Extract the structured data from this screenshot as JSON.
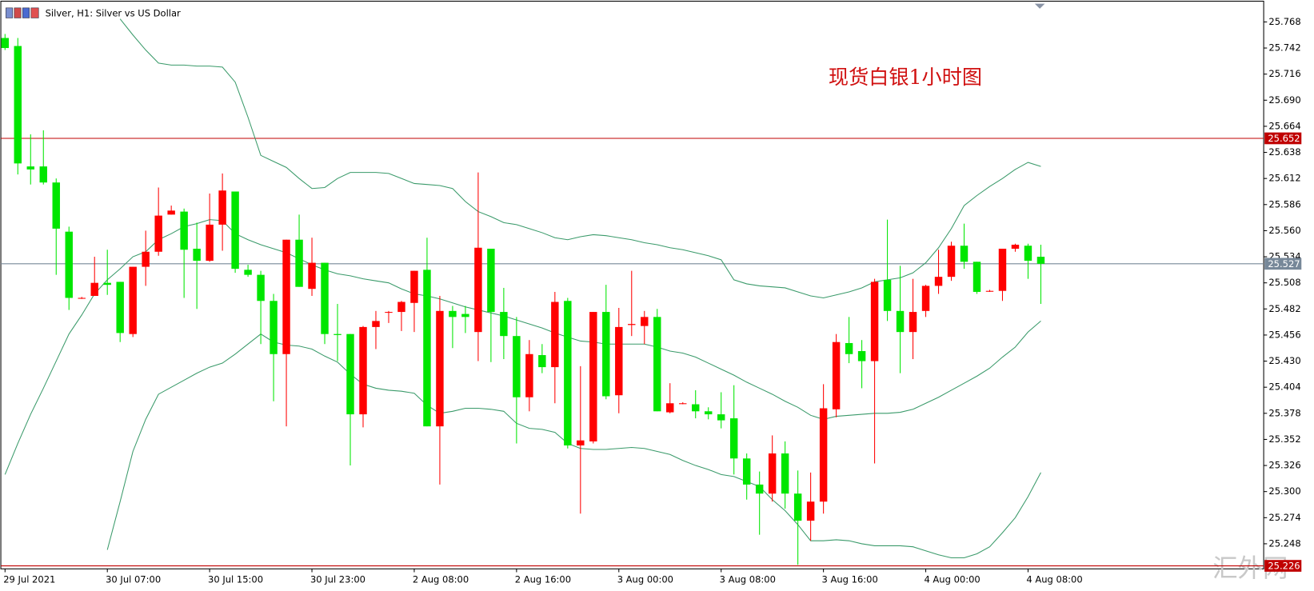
{
  "header": {
    "title": "Silver, H1:  Silver vs US Dollar"
  },
  "chart_data": {
    "type": "candlestick",
    "annotation": "现货白银1小时图",
    "watermark": "汇外网",
    "up_color": "#ff0000",
    "down_color": "#00e600",
    "categories": [
      "29 Jul 2021",
      null,
      null,
      null,
      null,
      null,
      null,
      null,
      "30 Jul 07:00",
      null,
      null,
      null,
      null,
      null,
      null,
      null,
      "30 Jul 15:00",
      null,
      null,
      null,
      null,
      null,
      null,
      null,
      "30 Jul 23:00",
      null,
      null,
      null,
      null,
      null,
      null,
      null,
      "2 Aug 08:00",
      null,
      null,
      null,
      null,
      null,
      null,
      null,
      "2 Aug 16:00",
      null,
      null,
      null,
      null,
      null,
      null,
      null,
      "3 Aug 00:00",
      null,
      null,
      null,
      null,
      null,
      null,
      null,
      "3 Aug 08:00",
      null,
      null,
      null,
      null,
      null,
      null,
      null,
      "3 Aug 16:00",
      null,
      null,
      null,
      null,
      null,
      null,
      null,
      "4 Aug 00:00",
      null,
      null,
      null,
      null,
      null,
      null,
      null,
      "4 Aug 08:00",
      null
    ],
    "open": [
      25.752,
      25.744,
      25.624,
      25.624,
      25.608,
      25.559,
      25.493,
      25.495,
      25.508,
      25.509,
      25.457,
      25.524,
      25.539,
      25.576,
      25.579,
      25.542,
      25.53,
      25.566,
      25.599,
      25.521,
      25.516,
      25.49,
      25.437,
      25.551,
      25.502,
      25.528,
      25.457,
      25.457,
      25.377,
      25.464,
      25.479,
      25.479,
      25.488,
      25.521,
      25.365,
      25.48,
      25.477,
      25.459,
      25.542,
      25.479,
      25.455,
      25.394,
      25.436,
      25.424,
      25.49,
      25.346,
      25.35,
      25.479,
      25.396,
      25.466,
      25.465,
      25.474,
      25.379,
      25.388,
      25.387,
      25.38,
      25.377,
      25.373,
      25.333,
      25.307,
      25.298,
      25.338,
      25.298,
      25.271,
      25.29,
      25.382,
      25.448,
      25.44,
      25.43,
      25.511,
      25.48,
      25.459,
      25.48,
      25.505,
      25.514,
      25.545,
      25.529,
      25.5,
      25.5,
      25.542,
      25.545,
      25.534
    ],
    "high": [
      25.756,
      25.752,
      25.656,
      25.66,
      25.612,
      25.564,
      25.494,
      25.534,
      25.541,
      25.509,
      25.524,
      25.56,
      25.603,
      25.585,
      25.582,
      25.568,
      25.597,
      25.617,
      25.599,
      25.526,
      25.52,
      25.497,
      25.551,
      25.576,
      25.553,
      25.528,
      25.487,
      25.457,
      25.465,
      25.48,
      25.48,
      25.49,
      25.52,
      25.553,
      25.495,
      25.485,
      25.485,
      25.618,
      25.542,
      25.503,
      25.474,
      25.451,
      25.447,
      25.499,
      25.493,
      25.425,
      25.479,
      25.506,
      25.483,
      25.52,
      25.48,
      25.482,
      25.408,
      25.389,
      25.401,
      25.384,
      25.399,
      25.406,
      25.338,
      25.32,
      25.356,
      25.35,
      25.321,
      25.319,
      25.407,
      25.457,
      25.474,
      25.451,
      25.512,
      25.571,
      25.525,
      25.512,
      25.506,
      25.541,
      25.549,
      25.567,
      25.529,
      25.501,
      25.542,
      25.547,
      25.547,
      25.546
    ],
    "low": [
      25.74,
      25.616,
      25.606,
      25.606,
      25.516,
      25.481,
      25.492,
      25.495,
      25.496,
      25.449,
      25.454,
      25.505,
      25.535,
      25.576,
      25.493,
      25.482,
      25.529,
      25.54,
      25.518,
      25.514,
      25.447,
      25.39,
      25.365,
      25.504,
      25.495,
      25.447,
      25.43,
      25.326,
      25.364,
      25.442,
      25.468,
      25.46,
      25.459,
      25.365,
      25.307,
      25.443,
      25.458,
      25.43,
      25.429,
      25.432,
      25.348,
      25.38,
      25.418,
      25.388,
      25.343,
      25.278,
      25.348,
      25.392,
      25.378,
      25.455,
      25.447,
      25.38,
      25.378,
      25.387,
      25.373,
      25.372,
      25.363,
      25.317,
      25.292,
      25.257,
      25.29,
      25.283,
      25.227,
      25.251,
      25.278,
      25.374,
      25.428,
      25.403,
      25.328,
      25.47,
      25.418,
      25.432,
      25.474,
      25.497,
      25.51,
      25.522,
      25.497,
      25.499,
      25.49,
      25.539,
      25.512,
      25.487
    ],
    "close": [
      25.742,
      25.627,
      25.621,
      25.608,
      25.562,
      25.493,
      25.493,
      25.508,
      25.506,
      25.458,
      25.524,
      25.539,
      25.575,
      25.58,
      25.541,
      25.53,
      25.566,
      25.6,
      25.522,
      25.516,
      25.49,
      25.437,
      25.551,
      25.504,
      25.528,
      25.457,
      25.456,
      25.377,
      25.464,
      25.47,
      25.479,
      25.489,
      25.52,
      25.365,
      25.48,
      25.474,
      25.474,
      25.543,
      25.479,
      25.455,
      25.394,
      25.437,
      25.424,
      25.489,
      25.346,
      25.351,
      25.479,
      25.395,
      25.464,
      25.467,
      25.474,
      25.38,
      25.388,
      25.388,
      25.38,
      25.377,
      25.371,
      25.333,
      25.307,
      25.298,
      25.338,
      25.298,
      25.271,
      25.29,
      25.383,
      25.449,
      25.437,
      25.43,
      25.509,
      25.48,
      25.459,
      25.479,
      25.505,
      25.514,
      25.545,
      25.529,
      25.499,
      25.5,
      25.542,
      25.546,
      25.53,
      25.527
    ],
    "lines": [
      {
        "color": "#3a9a6a",
        "values": [
          null,
          null,
          null,
          null,
          null,
          null,
          null,
          null,
          null,
          25.771,
          25.755,
          25.74,
          25.727,
          25.725,
          25.725,
          25.724,
          25.724,
          25.723,
          25.708,
          25.673,
          25.635,
          25.629,
          25.623,
          25.612,
          25.602,
          25.603,
          25.612,
          25.618,
          25.618,
          25.618,
          25.617,
          25.612,
          25.607,
          25.606,
          25.605,
          25.602,
          25.589,
          25.579,
          25.574,
          25.568,
          25.566,
          25.562,
          25.558,
          25.553,
          25.551,
          25.554,
          25.556,
          25.555,
          25.553,
          25.551,
          25.548,
          25.546,
          25.543,
          25.541,
          25.538,
          25.535,
          25.531,
          25.511,
          25.507,
          25.505,
          25.504,
          25.503,
          25.499,
          25.495,
          25.493,
          25.496,
          25.499,
          25.503,
          25.509,
          25.511,
          25.513,
          25.518,
          25.528,
          25.543,
          25.562,
          25.585,
          25.595,
          25.604,
          25.612,
          25.621,
          25.628,
          25.624
        ]
      },
      {
        "color": "#3a9a6a",
        "values": [
          25.317,
          25.348,
          25.377,
          25.403,
          25.43,
          25.457,
          25.476,
          25.497,
          25.511,
          25.522,
          25.534,
          25.539,
          25.551,
          25.557,
          25.564,
          25.567,
          25.571,
          25.57,
          25.557,
          25.551,
          25.546,
          25.542,
          25.538,
          25.532,
          25.526,
          25.521,
          25.517,
          25.515,
          25.512,
          25.51,
          25.508,
          25.502,
          25.497,
          25.495,
          25.492,
          25.488,
          25.484,
          25.481,
          25.478,
          25.475,
          25.471,
          25.467,
          25.463,
          25.458,
          25.454,
          25.45,
          25.449,
          25.447,
          25.447,
          25.447,
          25.447,
          25.444,
          25.44,
          25.438,
          25.434,
          25.428,
          25.422,
          25.416,
          25.409,
          25.403,
          25.397,
          25.39,
          25.384,
          25.376,
          25.372,
          25.375,
          25.376,
          25.377,
          25.378,
          25.378,
          25.379,
          25.382,
          25.388,
          25.394,
          25.401,
          25.408,
          25.415,
          25.423,
          25.434,
          25.444,
          25.459,
          25.47
        ]
      },
      {
        "color": "#3a9a6a",
        "values": [
          null,
          null,
          null,
          null,
          null,
          null,
          null,
          null,
          25.242,
          25.29,
          25.34,
          25.372,
          25.397,
          25.404,
          25.411,
          25.418,
          25.424,
          25.428,
          25.437,
          25.447,
          25.457,
          25.449,
          25.446,
          25.445,
          25.442,
          25.435,
          25.429,
          25.417,
          25.407,
          25.403,
          25.401,
          25.4,
          25.398,
          25.386,
          25.378,
          25.38,
          25.383,
          25.383,
          25.382,
          25.38,
          25.368,
          25.363,
          25.362,
          25.359,
          25.348,
          25.343,
          25.342,
          25.342,
          25.343,
          25.344,
          25.343,
          25.34,
          25.337,
          25.331,
          25.326,
          25.322,
          25.317,
          25.315,
          25.31,
          25.305,
          25.292,
          25.281,
          25.267,
          25.251,
          25.251,
          25.252,
          25.251,
          25.248,
          25.246,
          25.246,
          25.246,
          25.245,
          25.241,
          25.237,
          25.234,
          25.234,
          25.238,
          25.245,
          25.259,
          25.274,
          25.295,
          25.319
        ]
      }
    ],
    "hlines": [
      {
        "value": 25.652,
        "color": "#c00000"
      },
      {
        "value": 25.527,
        "color": "#778899"
      },
      {
        "value": 25.226,
        "color": "#c00000"
      }
    ],
    "ylim": [
      25.223,
      25.787
    ],
    "yticks": [
      25.768,
      25.742,
      25.716,
      {
        "value": 25.69,
        "label": "25.690"
      },
      25.664,
      25.638,
      25.612,
      25.586,
      {
        "value": 25.56,
        "label": "25.560"
      },
      25.534,
      25.508,
      25.482,
      25.456,
      {
        "value": 25.43,
        "label": "25.430"
      },
      25.404,
      25.378,
      25.352,
      25.326,
      {
        "value": 25.3,
        "label": "25.300"
      },
      25.274,
      25.248
    ]
  }
}
